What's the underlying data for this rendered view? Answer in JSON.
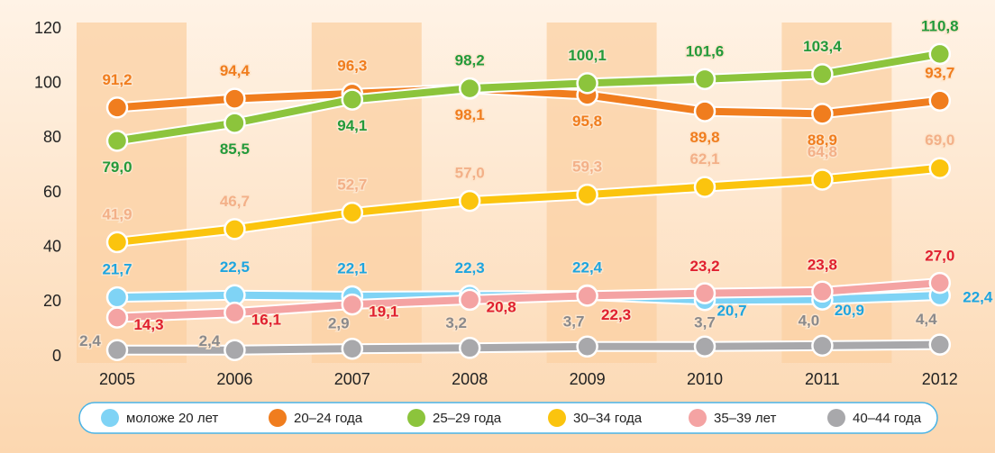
{
  "chart_data": {
    "type": "line",
    "categories": [
      "2005",
      "2006",
      "2007",
      "2008",
      "2009",
      "2010",
      "2011",
      "2012"
    ],
    "series": [
      {
        "name": "моложе 20 лет",
        "color": "#7fd3f5",
        "label_color": "#1ea5df",
        "values": [
          21.7,
          22.5,
          22.1,
          22.3,
          22.4,
          20.7,
          20.9,
          22.4
        ],
        "value_labels": [
          "21,7",
          "22,5",
          "22,1",
          "22,3",
          "22,4",
          "20,7",
          "20,9",
          "22,4"
        ]
      },
      {
        "name": "20–24 года",
        "color": "#f07d1e",
        "label_color": "#f07d1e",
        "values": [
          91.2,
          94.4,
          96.3,
          98.1,
          95.8,
          89.8,
          88.9,
          93.7
        ],
        "value_labels": [
          "91,2",
          "94,4",
          "96,3",
          "98,1",
          "95,8",
          "89,8",
          "88,9",
          "93,7"
        ]
      },
      {
        "name": "25–29 года",
        "color": "#8cc43c",
        "label_color": "#239a3b",
        "values": [
          79.0,
          85.5,
          94.1,
          98.2,
          100.1,
          101.6,
          103.4,
          110.8
        ],
        "value_labels": [
          "79,0",
          "85,5",
          "94,1",
          "98,2",
          "100,1",
          "101,6",
          "103,4",
          "110,8"
        ]
      },
      {
        "name": "30–34 года",
        "color": "#fbc40e",
        "label_color": "#f3b088",
        "values": [
          41.9,
          46.7,
          52.7,
          57.0,
          59.3,
          62.1,
          64.8,
          69.0
        ],
        "value_labels": [
          "41,9",
          "46,7",
          "52,7",
          "57,0",
          "59,3",
          "62,1",
          "64,8",
          "69,0"
        ]
      },
      {
        "name": "35–39 лет",
        "color": "#f4a3a3",
        "label_color": "#e0202f",
        "values": [
          14.3,
          16.1,
          19.1,
          20.8,
          22.3,
          23.2,
          23.8,
          27.0
        ],
        "value_labels": [
          "14,3",
          "16,1",
          "19,1",
          "20,8",
          "22,3",
          "23,2",
          "23,8",
          "27,0"
        ]
      },
      {
        "name": "40–44 года",
        "color": "#a8a8ab",
        "label_color": "#8a8a8c",
        "values": [
          2.4,
          2.4,
          2.9,
          3.2,
          3.7,
          3.7,
          4.0,
          4.4
        ],
        "value_labels": [
          "2,4",
          "2,4",
          "2,9",
          "3,2",
          "3,7",
          "3,7",
          "4,0",
          "4,4"
        ]
      }
    ],
    "ylim": [
      0,
      120
    ],
    "yticks": [
      0,
      20,
      40,
      60,
      80,
      100,
      120
    ],
    "legend": "bottom"
  }
}
